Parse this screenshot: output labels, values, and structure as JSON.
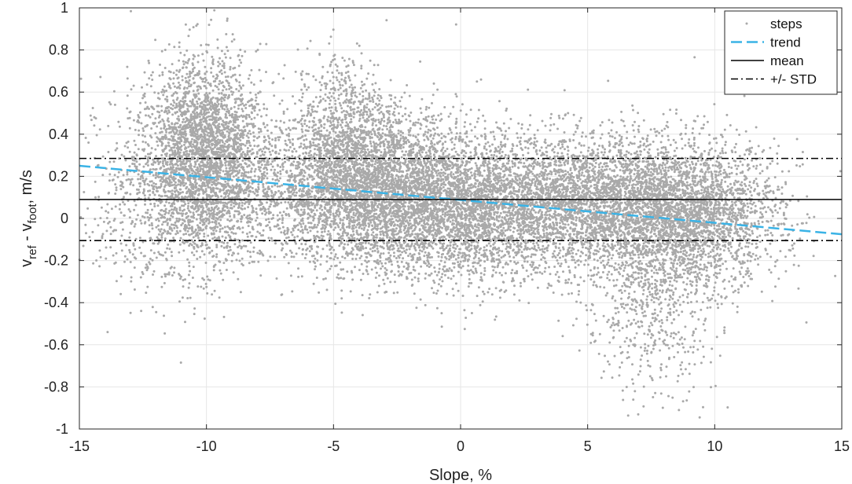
{
  "chart_data": {
    "type": "scatter",
    "xlabel": "Slope, %",
    "ylabel": {
      "parts": [
        {
          "text": "v",
          "sub": false
        },
        {
          "text": "ref",
          "sub": true
        },
        {
          "text": " - v",
          "sub": false
        },
        {
          "text": "foot",
          "sub": true
        },
        {
          "text": ", m/s",
          "sub": false
        }
      ]
    },
    "xlim": [
      -15,
      15
    ],
    "ylim": [
      -1,
      1
    ],
    "xticks": [
      -15,
      -10,
      -5,
      0,
      5,
      10,
      15
    ],
    "yticks": [
      -1,
      -0.8,
      -0.6,
      -0.4,
      -0.2,
      0,
      0.2,
      0.4,
      0.6,
      0.8,
      1
    ],
    "grid": true,
    "legend_position": "top-right",
    "series": [
      {
        "name": "steps",
        "kind": "scatter",
        "color": "#a9a9a9",
        "density_clusters": [
          {
            "x_center": -10.2,
            "y_center": 0.2,
            "x_spread": 1.4,
            "y_spread": 0.22,
            "count": 2600
          },
          {
            "x_center": -10.0,
            "y_center": 0.45,
            "x_spread": 1.0,
            "y_spread": 0.18,
            "count": 900
          },
          {
            "x_center": -4.0,
            "y_center": 0.15,
            "x_spread": 2.0,
            "y_spread": 0.18,
            "count": 3400
          },
          {
            "x_center": -4.5,
            "y_center": 0.45,
            "x_spread": 1.0,
            "y_spread": 0.18,
            "count": 600
          },
          {
            "x_center": 0.0,
            "y_center": 0.05,
            "x_spread": 2.2,
            "y_spread": 0.17,
            "count": 3200
          },
          {
            "x_center": 5.0,
            "y_center": 0.08,
            "x_spread": 2.2,
            "y_spread": 0.16,
            "count": 2800
          },
          {
            "x_center": 9.0,
            "y_center": 0.02,
            "x_spread": 1.8,
            "y_spread": 0.17,
            "count": 2600
          },
          {
            "x_center": 7.5,
            "y_center": -0.4,
            "x_spread": 1.3,
            "y_spread": 0.22,
            "count": 600
          },
          {
            "x_center": -13.0,
            "y_center": 0.1,
            "x_spread": 1.0,
            "y_spread": 0.25,
            "count": 200
          }
        ],
        "x_range": [
          -15,
          15
        ],
        "y_range": [
          -1,
          1
        ]
      },
      {
        "name": "trend",
        "kind": "line",
        "style": "dashed",
        "color": "#3ab3e6",
        "x": [
          -15,
          15
        ],
        "y": [
          0.25,
          -0.075
        ]
      },
      {
        "name": "mean",
        "kind": "line",
        "style": "solid",
        "color": "#000000",
        "x": [
          -15,
          15
        ],
        "y": [
          0.09,
          0.09
        ]
      },
      {
        "name": "+/- STD",
        "kind": "line",
        "style": "dashdot",
        "color": "#000000",
        "x": [
          -15,
          15
        ],
        "y": [
          0.285,
          0.285
        ],
        "y_lower": [
          -0.105,
          -0.105
        ]
      }
    ]
  }
}
